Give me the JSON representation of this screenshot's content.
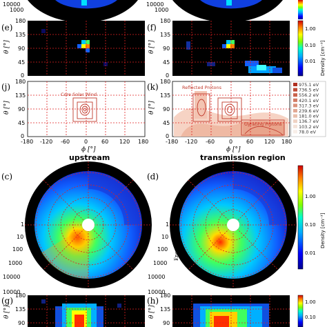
{
  "panels": {
    "e": "(e)",
    "f": "(f)",
    "j": "(j)",
    "k": "(k)",
    "c": "(c)",
    "d": "(d)",
    "g": "(g)",
    "h": "(h)"
  },
  "ticks": {
    "theta": [
      "180",
      "135",
      "90",
      "45",
      "0"
    ],
    "phi": [
      "-180",
      "-120",
      "-60",
      "0",
      "60",
      "120",
      "180"
    ],
    "phi_right_last": "180",
    "energy": [
      "1",
      "10",
      "100",
      "1000",
      "10000"
    ],
    "top_energy": "10000",
    "top_energy_cut": "1000"
  },
  "axes": {
    "theta": "θ [°]",
    "phi": "ϕ [°]",
    "energy": "Energy [eV]"
  },
  "captions": {
    "upstream": "upstream",
    "transmission": "transmission region"
  },
  "annotations": {
    "core": "Core Solar Wind",
    "reflected": "Reflected Protons",
    "gyrating": "Gyrating Protons"
  },
  "energy_legend": [
    "975.1 eV",
    "736.5 eV",
    "556.2 eV",
    "420.1 eV",
    "317.3 eV",
    "239.6 eV",
    "181.0 eV",
    "136.7 eV",
    "103.2 eV",
    "78.0 eV"
  ],
  "colorbar": {
    "ticks": [
      "1.00",
      "0.10",
      "0.01"
    ],
    "label": "Density [cm⁻³]"
  },
  "colors": {
    "grid": "#e02020",
    "panel_bg": "#000000",
    "contour": "#c0392b"
  }
}
